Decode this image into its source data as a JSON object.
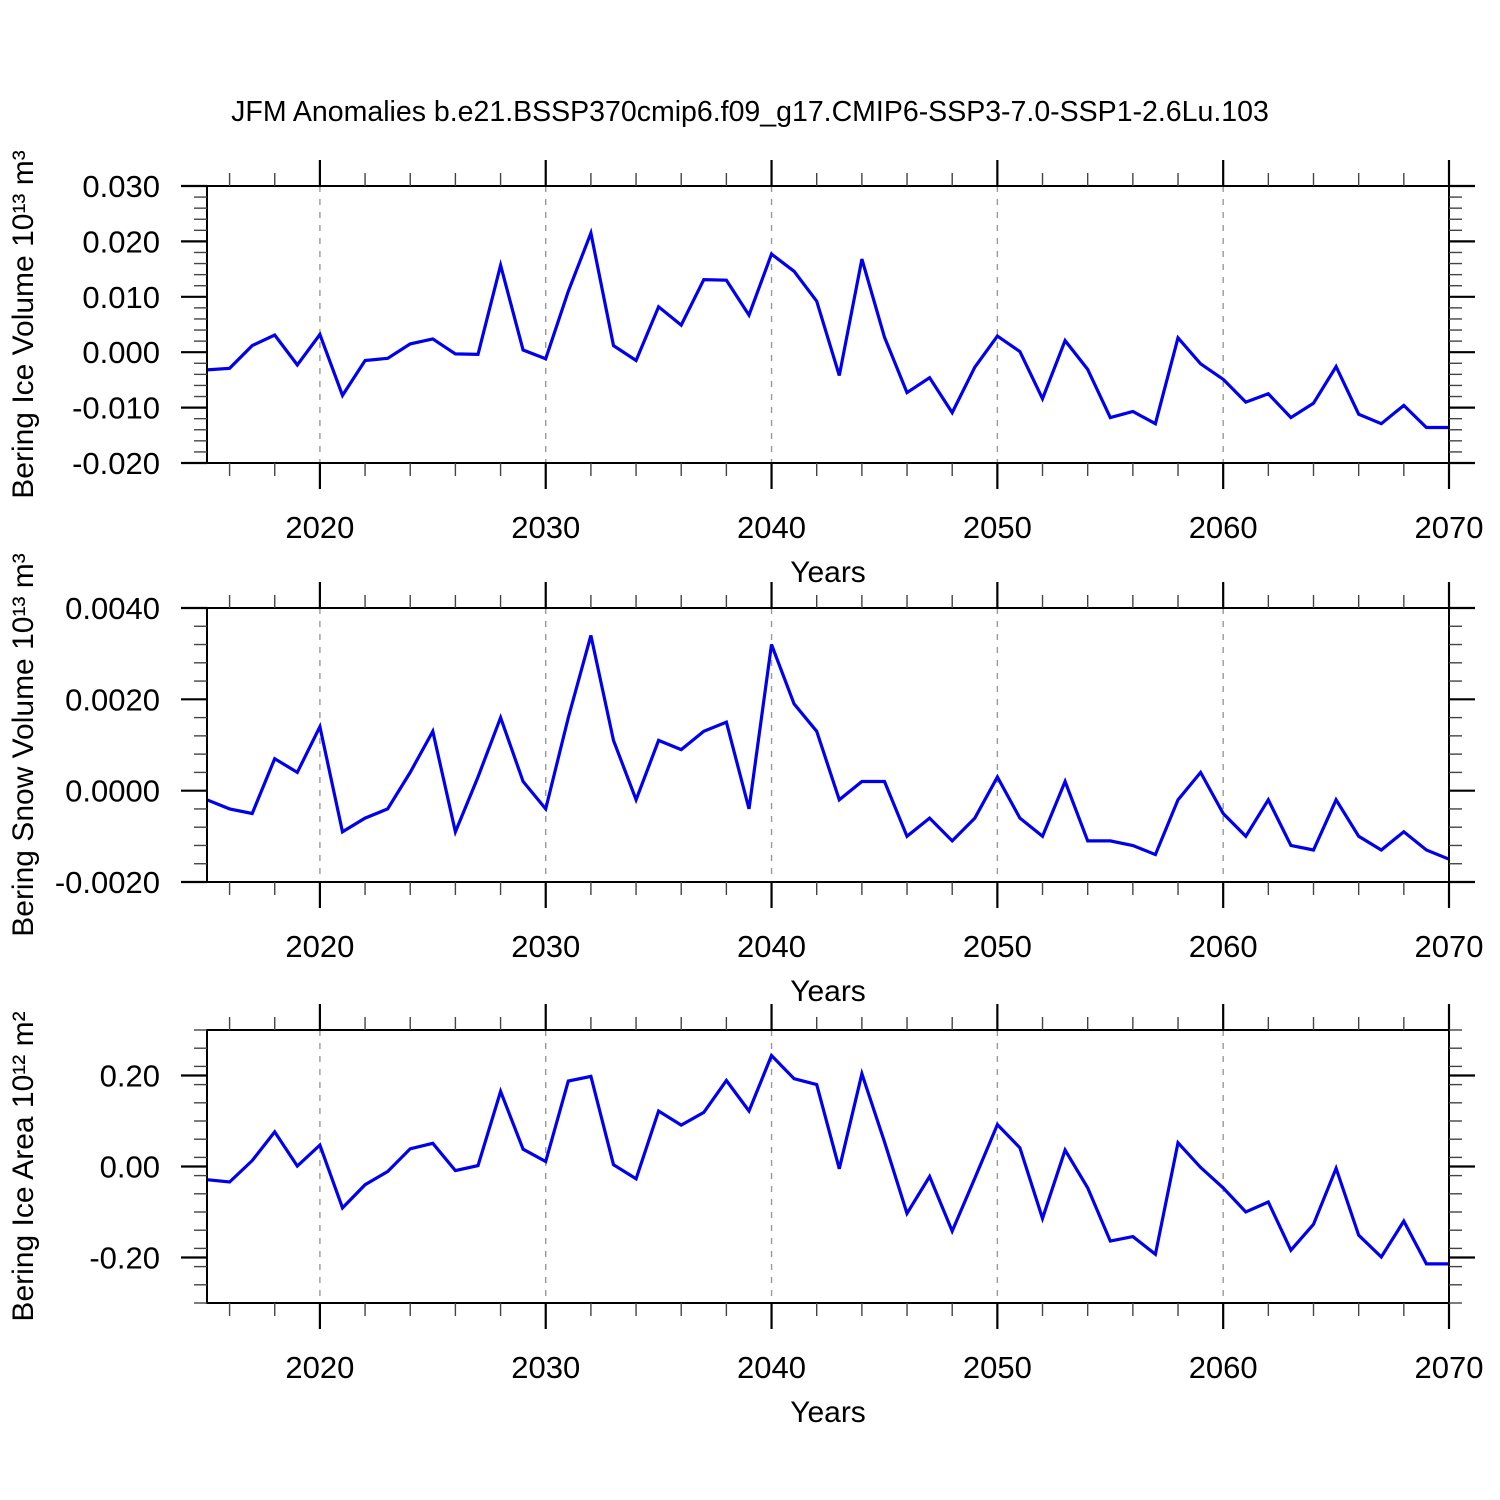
{
  "title": "JFM Anomalies b.e21.BSSP370cmip6.f09_g17.CMIP6-SSP3-7.0-SSP1-2.6Lu.103",
  "line_color": "#0000ee",
  "gridline_color": "#999999",
  "chart_data": [
    {
      "type": "line",
      "name": "bering-ice-volume",
      "ylabel": "Bering Ice Volume 10¹³ m³",
      "xlabel": "Years",
      "x_start": 2015,
      "x_end": 2070,
      "xticks": [
        2020,
        2030,
        2040,
        2050,
        2060,
        2070
      ],
      "x_minor_step": 2,
      "gridlines_x": [
        2020,
        2030,
        2040,
        2050,
        2060
      ],
      "ylim": [
        -0.02,
        0.03
      ],
      "yticks": [
        0.03,
        0.02,
        0.01,
        0.0,
        -0.01,
        -0.02
      ],
      "y_minor_step": 0.002,
      "ytick_decimals": 3,
      "legend": "none",
      "grid": "x-dashed",
      "values": [
        -0.0032,
        -0.0029,
        0.0012,
        0.0031,
        -0.0023,
        0.0032,
        -0.0078,
        -0.0015,
        -0.0011,
        0.0015,
        0.0024,
        -0.0003,
        -0.0004,
        0.0157,
        0.0004,
        -0.0012,
        0.011,
        0.0215,
        0.0012,
        -0.0015,
        0.0082,
        0.0049,
        0.0131,
        0.013,
        0.0067,
        0.0177,
        0.0146,
        0.0092,
        -0.0042,
        0.0168,
        0.0027,
        -0.0073,
        -0.0046,
        -0.0109,
        -0.0027,
        0.0029,
        0.0001,
        -0.0084,
        0.0021,
        -0.0031,
        -0.0118,
        -0.0107,
        -0.0129,
        0.0026,
        -0.0021,
        -0.0049,
        -0.009,
        -0.0075,
        -0.0118,
        -0.0092,
        -0.0026,
        -0.0112,
        -0.0129,
        -0.0096,
        -0.0136,
        -0.0136
      ]
    },
    {
      "type": "line",
      "name": "bering-snow-volume",
      "ylabel": "Bering Snow Volume 10¹³ m³",
      "xlabel": "Years",
      "x_start": 2015,
      "x_end": 2070,
      "xticks": [
        2020,
        2030,
        2040,
        2050,
        2060,
        2070
      ],
      "x_minor_step": 2,
      "gridlines_x": [
        2020,
        2030,
        2040,
        2050,
        2060
      ],
      "ylim": [
        -0.002,
        0.004
      ],
      "yticks": [
        0.004,
        0.002,
        0.0,
        -0.002
      ],
      "y_minor_step": 0.0004,
      "ytick_decimals": 4,
      "legend": "none",
      "grid": "x-dashed",
      "values": [
        -0.0002,
        -0.0004,
        -0.0005,
        0.0007,
        0.0004,
        0.0014,
        -0.0009,
        -0.0006,
        -0.0004,
        0.0004,
        0.0013,
        -0.0009,
        0.0003,
        0.0016,
        0.0002,
        -0.0004,
        0.0016,
        0.0034,
        0.0011,
        -0.0002,
        0.0011,
        0.0009,
        0.0013,
        0.0015,
        -0.0004,
        0.0032,
        0.0019,
        0.0013,
        -0.0002,
        0.0002,
        0.0002,
        -0.001,
        -0.0006,
        -0.0011,
        -0.0006,
        0.0003,
        -0.0006,
        -0.001,
        0.0002,
        -0.0011,
        -0.0011,
        -0.0012,
        -0.0014,
        -0.0002,
        0.0004,
        -0.0005,
        -0.001,
        -0.0002,
        -0.0012,
        -0.0013,
        -0.0002,
        -0.001,
        -0.0013,
        -0.0009,
        -0.0013,
        -0.0015
      ]
    },
    {
      "type": "line",
      "name": "bering-ice-area",
      "ylabel": "Bering Ice Area 10¹² m²",
      "xlabel": "Years",
      "x_start": 2015,
      "x_end": 2070,
      "xticks": [
        2020,
        2030,
        2040,
        2050,
        2060,
        2070
      ],
      "x_minor_step": 2,
      "gridlines_x": [
        2020,
        2030,
        2040,
        2050,
        2060
      ],
      "ylim": [
        -0.3,
        0.3
      ],
      "yticks": [
        0.2,
        0.0,
        -0.2
      ],
      "y_minor_step": 0.04,
      "ytick_decimals": 2,
      "legend": "none",
      "grid": "x-dashed",
      "values": [
        -0.029,
        -0.034,
        0.013,
        0.076,
        0.001,
        0.047,
        -0.091,
        -0.04,
        -0.011,
        0.039,
        0.051,
        -0.009,
        0.002,
        0.165,
        0.038,
        0.011,
        0.188,
        0.198,
        0.004,
        -0.027,
        0.122,
        0.091,
        0.119,
        0.189,
        0.122,
        0.244,
        0.193,
        0.18,
        -0.005,
        0.204,
        0.054,
        -0.103,
        -0.022,
        -0.142,
        -0.026,
        0.092,
        0.041,
        -0.114,
        0.036,
        -0.047,
        -0.164,
        -0.154,
        -0.193,
        0.052,
        -0.002,
        -0.047,
        -0.1,
        -0.078,
        -0.184,
        -0.127,
        -0.004,
        -0.151,
        -0.199,
        -0.12,
        -0.214,
        -0.214
      ]
    }
  ]
}
